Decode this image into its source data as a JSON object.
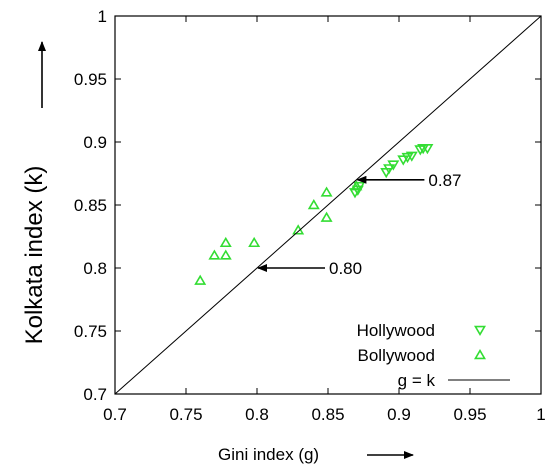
{
  "chart_data": {
    "type": "scatter",
    "xlabel": "Gini index (g)",
    "ylabel": "Kolkata index (k)",
    "xlim": [
      0.7,
      1.0
    ],
    "ylim": [
      0.7,
      1.0
    ],
    "xticks": [
      "0.7",
      "0.75",
      "0.8",
      "0.85",
      "0.9",
      "0.95",
      "1"
    ],
    "yticks": [
      "0.7",
      "0.75",
      "0.8",
      "0.85",
      "0.9",
      "0.95",
      "1"
    ],
    "grid": false,
    "legend_position": "bottom-right",
    "series": [
      {
        "name": "Hollywood",
        "marker": "triangle-down",
        "color": "#33dd33",
        "points": [
          [
            0.869,
            0.86
          ],
          [
            0.871,
            0.862
          ],
          [
            0.872,
            0.865
          ],
          [
            0.891,
            0.876
          ],
          [
            0.893,
            0.879
          ],
          [
            0.896,
            0.882
          ],
          [
            0.903,
            0.886
          ],
          [
            0.906,
            0.888
          ],
          [
            0.909,
            0.889
          ],
          [
            0.915,
            0.894
          ],
          [
            0.917,
            0.895
          ],
          [
            0.92,
            0.895
          ]
        ]
      },
      {
        "name": "Bollywood",
        "marker": "triangle-up",
        "color": "#33dd33",
        "points": [
          [
            0.76,
            0.79
          ],
          [
            0.77,
            0.81
          ],
          [
            0.778,
            0.81
          ],
          [
            0.778,
            0.82
          ],
          [
            0.798,
            0.82
          ],
          [
            0.829,
            0.83
          ],
          [
            0.84,
            0.85
          ],
          [
            0.849,
            0.84
          ],
          [
            0.849,
            0.86
          ],
          [
            0.87,
            0.865
          ]
        ]
      },
      {
        "name": "g = k",
        "type": "line",
        "color": "#000000",
        "points": [
          [
            0.7,
            0.7
          ],
          [
            1.0,
            1.0
          ]
        ]
      }
    ],
    "annotations": [
      {
        "text": "0.87",
        "arrow_to": [
          0.87,
          0.87
        ]
      },
      {
        "text": "0.80",
        "arrow_to": [
          0.8,
          0.8
        ]
      }
    ]
  }
}
